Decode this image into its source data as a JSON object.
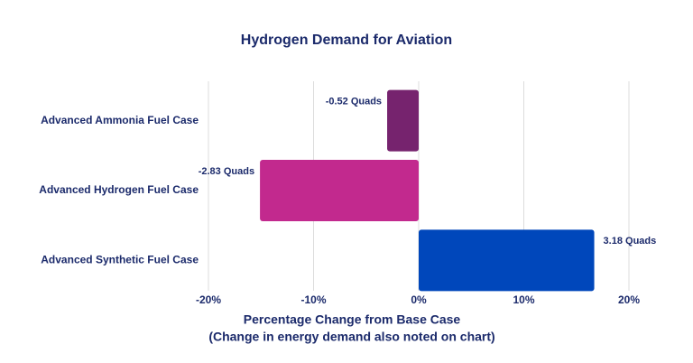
{
  "chart_data": {
    "type": "hbar",
    "title": "Hydrogen Demand for Aviation",
    "categories": [
      "Advanced Ammonia Fuel Case",
      "Advanced Hydrogen Fuel Case",
      "Advanced Synthetic Fuel Case"
    ],
    "values": [
      -3.0,
      -15.1,
      16.7
    ],
    "colors": [
      "#76236e",
      "#c2298e",
      "#0047bb"
    ],
    "annotations": [
      "-0.52 Quads",
      "-2.83 Quads",
      "3.18 Quads"
    ],
    "xlim": [
      -20,
      20
    ],
    "xticks": [
      {
        "value": -20,
        "label": "-20%"
      },
      {
        "value": -10,
        "label": "-10%"
      },
      {
        "value": 0,
        "label": "0%"
      },
      {
        "value": 10,
        "label": "10%"
      },
      {
        "value": 20,
        "label": "20%"
      }
    ],
    "grid": true,
    "x_label": "Percentage Change from Base Case",
    "x_label_note": "(Change in energy demand also noted on chart)"
  }
}
